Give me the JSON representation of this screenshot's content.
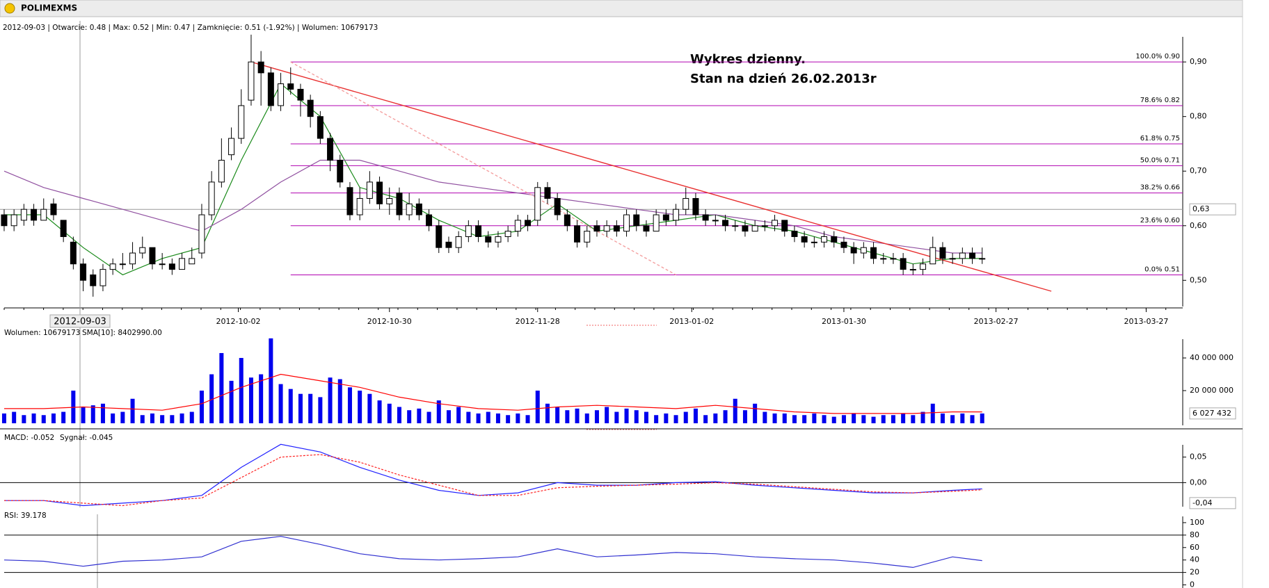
{
  "window_title": "POLIMEXMS",
  "info_line": "2012-09-03 | Otwarcie: 0.48 | Max: 0.52 | Min: 0.47 | Zamknięcie: 0.51 (-1.92%) | Wolumen: 10679173",
  "chart_data": {
    "type": "candlestick",
    "annotation": [
      "Wykres dzienny.",
      "Stan na dzień 26.02.2013r"
    ],
    "xlim": [
      -0.42,
      119.3
    ],
    "xticks": [
      {
        "value": 23.7,
        "label": "2012-10-02"
      },
      {
        "value": 39,
        "label": "2012-10-30"
      },
      {
        "value": 54,
        "label": "2012-11-28"
      },
      {
        "value": 69.6,
        "label": "2013-01-02"
      },
      {
        "value": 85,
        "label": "2013-01-30"
      },
      {
        "value": 100.4,
        "label": "2013-02-27"
      },
      {
        "value": 115.6,
        "label": "2013-03-27"
      }
    ],
    "ylim": [
      0.452,
      0.946
    ],
    "yticks": [
      {
        "value": 0.5,
        "label": "0,50"
      },
      {
        "value": 0.6,
        "label": "0,60"
      },
      {
        "value": 0.7,
        "label": "0,70"
      },
      {
        "value": 0.8,
        "label": "0,80"
      },
      {
        "value": 0.9,
        "label": "0,90"
      }
    ],
    "cursor": {
      "x_label": "2012-09-03",
      "y": {
        "value": 0.63,
        "label": "0,63"
      }
    },
    "candles": [
      [
        0.62,
        0.63,
        0.59,
        0.6
      ],
      [
        0.6,
        0.63,
        0.59,
        0.62
      ],
      [
        0.61,
        0.64,
        0.6,
        0.63
      ],
      [
        0.63,
        0.64,
        0.6,
        0.61
      ],
      [
        0.61,
        0.65,
        0.61,
        0.63
      ],
      [
        0.64,
        0.65,
        0.61,
        0.62
      ],
      [
        0.61,
        0.61,
        0.57,
        0.58
      ],
      [
        0.57,
        0.58,
        0.52,
        0.53
      ],
      [
        0.53,
        0.54,
        0.48,
        0.5
      ],
      [
        0.51,
        0.52,
        0.47,
        0.49
      ],
      [
        0.49,
        0.53,
        0.48,
        0.52
      ],
      [
        0.52,
        0.54,
        0.51,
        0.53
      ],
      [
        0.53,
        0.55,
        0.52,
        0.53
      ],
      [
        0.53,
        0.57,
        0.52,
        0.55
      ],
      [
        0.55,
        0.58,
        0.54,
        0.56
      ],
      [
        0.56,
        0.56,
        0.52,
        0.53
      ],
      [
        0.53,
        0.55,
        0.52,
        0.53
      ],
      [
        0.53,
        0.54,
        0.51,
        0.52
      ],
      [
        0.52,
        0.55,
        0.52,
        0.54
      ],
      [
        0.53,
        0.56,
        0.53,
        0.54
      ],
      [
        0.55,
        0.64,
        0.54,
        0.62
      ],
      [
        0.62,
        0.7,
        0.61,
        0.68
      ],
      [
        0.68,
        0.76,
        0.67,
        0.72
      ],
      [
        0.73,
        0.78,
        0.72,
        0.76
      ],
      [
        0.76,
        0.85,
        0.75,
        0.82
      ],
      [
        0.83,
        0.95,
        0.82,
        0.9
      ],
      [
        0.9,
        0.92,
        0.82,
        0.88
      ],
      [
        0.88,
        0.89,
        0.81,
        0.82
      ],
      [
        0.82,
        0.88,
        0.81,
        0.86
      ],
      [
        0.86,
        0.89,
        0.84,
        0.85
      ],
      [
        0.85,
        0.86,
        0.8,
        0.83
      ],
      [
        0.83,
        0.84,
        0.78,
        0.8
      ],
      [
        0.8,
        0.81,
        0.75,
        0.76
      ],
      [
        0.76,
        0.77,
        0.7,
        0.72
      ],
      [
        0.72,
        0.73,
        0.67,
        0.68
      ],
      [
        0.67,
        0.68,
        0.61,
        0.62
      ],
      [
        0.62,
        0.67,
        0.61,
        0.65
      ],
      [
        0.65,
        0.7,
        0.64,
        0.68
      ],
      [
        0.68,
        0.69,
        0.63,
        0.64
      ],
      [
        0.64,
        0.67,
        0.62,
        0.65
      ],
      [
        0.66,
        0.67,
        0.61,
        0.62
      ],
      [
        0.62,
        0.66,
        0.61,
        0.64
      ],
      [
        0.64,
        0.65,
        0.61,
        0.62
      ],
      [
        0.62,
        0.63,
        0.59,
        0.6
      ],
      [
        0.6,
        0.61,
        0.55,
        0.56
      ],
      [
        0.57,
        0.58,
        0.55,
        0.56
      ],
      [
        0.56,
        0.59,
        0.55,
        0.58
      ],
      [
        0.58,
        0.61,
        0.57,
        0.6
      ],
      [
        0.6,
        0.61,
        0.57,
        0.58
      ],
      [
        0.58,
        0.59,
        0.56,
        0.57
      ],
      [
        0.57,
        0.59,
        0.56,
        0.58
      ],
      [
        0.58,
        0.6,
        0.57,
        0.59
      ],
      [
        0.59,
        0.62,
        0.58,
        0.61
      ],
      [
        0.61,
        0.62,
        0.59,
        0.6
      ],
      [
        0.61,
        0.68,
        0.6,
        0.67
      ],
      [
        0.67,
        0.68,
        0.64,
        0.65
      ],
      [
        0.65,
        0.66,
        0.61,
        0.62
      ],
      [
        0.62,
        0.63,
        0.59,
        0.6
      ],
      [
        0.6,
        0.61,
        0.56,
        0.57
      ],
      [
        0.57,
        0.6,
        0.56,
        0.59
      ],
      [
        0.6,
        0.61,
        0.58,
        0.59
      ],
      [
        0.59,
        0.61,
        0.58,
        0.6
      ],
      [
        0.6,
        0.61,
        0.58,
        0.59
      ],
      [
        0.59,
        0.63,
        0.58,
        0.62
      ],
      [
        0.62,
        0.63,
        0.59,
        0.6
      ],
      [
        0.6,
        0.61,
        0.58,
        0.59
      ],
      [
        0.59,
        0.63,
        0.59,
        0.62
      ],
      [
        0.62,
        0.63,
        0.6,
        0.61
      ],
      [
        0.61,
        0.64,
        0.6,
        0.63
      ],
      [
        0.63,
        0.67,
        0.62,
        0.65
      ],
      [
        0.65,
        0.66,
        0.61,
        0.62
      ],
      [
        0.62,
        0.63,
        0.6,
        0.61
      ],
      [
        0.61,
        0.62,
        0.6,
        0.61
      ],
      [
        0.61,
        0.62,
        0.59,
        0.6
      ],
      [
        0.6,
        0.61,
        0.59,
        0.6
      ],
      [
        0.6,
        0.61,
        0.58,
        0.59
      ],
      [
        0.59,
        0.61,
        0.59,
        0.6
      ],
      [
        0.6,
        0.61,
        0.59,
        0.6
      ],
      [
        0.6,
        0.62,
        0.59,
        0.61
      ],
      [
        0.61,
        0.61,
        0.58,
        0.59
      ],
      [
        0.59,
        0.6,
        0.57,
        0.58
      ],
      [
        0.58,
        0.59,
        0.56,
        0.57
      ],
      [
        0.57,
        0.58,
        0.56,
        0.57
      ],
      [
        0.57,
        0.59,
        0.56,
        0.58
      ],
      [
        0.58,
        0.59,
        0.56,
        0.57
      ],
      [
        0.57,
        0.58,
        0.55,
        0.56
      ],
      [
        0.56,
        0.57,
        0.53,
        0.55
      ],
      [
        0.55,
        0.57,
        0.54,
        0.56
      ],
      [
        0.56,
        0.57,
        0.53,
        0.54
      ],
      [
        0.54,
        0.55,
        0.53,
        0.54
      ],
      [
        0.54,
        0.55,
        0.53,
        0.54
      ],
      [
        0.54,
        0.55,
        0.51,
        0.52
      ],
      [
        0.52,
        0.53,
        0.51,
        0.52
      ],
      [
        0.52,
        0.54,
        0.51,
        0.53
      ],
      [
        0.53,
        0.58,
        0.53,
        0.56
      ],
      [
        0.56,
        0.57,
        0.53,
        0.54
      ],
      [
        0.54,
        0.55,
        0.53,
        0.54
      ],
      [
        0.54,
        0.56,
        0.53,
        0.55
      ],
      [
        0.55,
        0.56,
        0.53,
        0.54
      ],
      [
        0.54,
        0.56,
        0.53,
        0.54
      ]
    ],
    "fib_color": "#b000b0",
    "fib_levels": [
      {
        "value": 0.9,
        "label": "100.0% 0.90"
      },
      {
        "value": 0.82,
        "label": "78.6% 0.82"
      },
      {
        "value": 0.75,
        "label": "61.8% 0.75"
      },
      {
        "value": 0.71,
        "label": "50.0% 0.71"
      },
      {
        "value": 0.66,
        "label": "38.2% 0.66"
      },
      {
        "value": 0.6,
        "label": "23.6% 0.60"
      },
      {
        "value": 0.51,
        "label": "0.0% 0.51"
      }
    ],
    "trendlines": [
      {
        "color": "#e83030",
        "points": [
          [
            25,
            0.9
          ],
          [
            106,
            0.48
          ]
        ]
      },
      {
        "color": "#f4a0a0",
        "dashed": true,
        "points": [
          [
            29,
            0.9
          ],
          [
            68,
            0.51
          ]
        ]
      }
    ],
    "line_x": [
      0,
      4,
      8,
      12,
      16,
      20,
      24,
      28,
      32,
      36,
      40,
      44,
      48,
      52,
      56,
      60,
      64,
      68,
      72,
      76,
      80,
      84,
      88,
      92,
      96,
      99
    ],
    "overlays": [
      {
        "color": "#1a8a1a",
        "values": [
          0.62,
          0.62,
          0.56,
          0.51,
          0.54,
          0.56,
          0.72,
          0.86,
          0.8,
          0.67,
          0.65,
          0.61,
          0.58,
          0.59,
          0.64,
          0.59,
          0.6,
          0.61,
          0.62,
          0.6,
          0.59,
          0.57,
          0.55,
          0.53,
          0.54,
          0.54
        ]
      },
      {
        "color": "#9050a0",
        "values": [
          0.7,
          0.67,
          0.65,
          0.63,
          0.61,
          0.59,
          0.63,
          0.68,
          0.72,
          0.72,
          0.7,
          0.68,
          0.67,
          0.66,
          0.65,
          0.64,
          0.63,
          0.62,
          0.62,
          0.61,
          0.6,
          0.58,
          0.57,
          0.56,
          0.55,
          0.55
        ]
      }
    ],
    "volume": {
      "legend": [
        "Wolumen: 10679173",
        "SMA[10]: 8402990.00"
      ],
      "legend_colors": [
        "#0000ff",
        "#ff0000"
      ],
      "ylim": [
        0,
        51500000
      ],
      "yticks": [
        {
          "value": 20000000,
          "label": "20 000 000"
        },
        {
          "value": 40000000,
          "label": "40 000 000"
        }
      ],
      "current": {
        "value": 6027432,
        "label": "6 027 432"
      },
      "color": "#0000ee",
      "values": [
        6000000,
        7000000,
        5000000,
        6000000,
        5000000,
        6000000,
        7000000,
        20000000,
        10000000,
        11000000,
        12000000,
        6000000,
        7000000,
        15000000,
        5000000,
        6000000,
        5000000,
        5000000,
        6000000,
        7000000,
        20000000,
        30000000,
        43000000,
        26000000,
        40000000,
        28000000,
        30000000,
        52000000,
        24000000,
        21000000,
        18000000,
        18000000,
        16000000,
        28000000,
        27000000,
        22000000,
        20000000,
        18000000,
        14000000,
        12000000,
        10000000,
        8000000,
        9000000,
        7000000,
        14000000,
        8000000,
        10000000,
        7000000,
        6000000,
        7000000,
        6000000,
        5000000,
        6000000,
        5000000,
        20000000,
        12000000,
        10000000,
        8000000,
        9000000,
        6000000,
        8000000,
        10000000,
        7000000,
        9000000,
        8000000,
        7000000,
        5000000,
        6000000,
        5000000,
        7000000,
        9000000,
        5000000,
        6000000,
        8000000,
        15000000,
        8000000,
        12000000,
        7000000,
        6000000,
        6000000,
        5000000,
        5000000,
        6000000,
        5000000,
        4000000,
        5000000,
        6000000,
        5000000,
        4000000,
        5000000,
        5000000,
        6000000,
        5000000,
        7000000,
        12000000,
        6000000,
        5000000,
        6000000,
        5000000,
        6000000
      ],
      "sma": {
        "color": "#ff0000",
        "values": [
          9000000,
          9000000,
          10000000,
          9000000,
          8000000,
          12000000,
          22000000,
          30000000,
          26000000,
          22000000,
          16000000,
          12000000,
          9000000,
          8000000,
          10000000,
          11000000,
          10000000,
          9000000,
          11000000,
          9000000,
          7000000,
          6000000,
          6000000,
          6000000,
          7000000,
          7000000
        ]
      }
    },
    "macd": {
      "legend": [
        "MACD: -0.052",
        "Sygnał: -0.045"
      ],
      "legend_colors": [
        "#0000ff",
        "#ff0000"
      ],
      "ylim": [
        -0.047,
        0.074
      ],
      "yticks": [
        {
          "value": 0,
          "label": "0,00"
        },
        {
          "value": 0.05,
          "label": "0,05"
        }
      ],
      "current": {
        "value": -0.04,
        "label": "-0,04"
      },
      "series": [
        {
          "color": "#2020ff",
          "values": [
            -0.035,
            -0.035,
            -0.045,
            -0.04,
            -0.035,
            -0.025,
            0.03,
            0.075,
            0.06,
            0.03,
            0.005,
            -0.015,
            -0.025,
            -0.02,
            0.0,
            -0.005,
            -0.005,
            0.0,
            0.002,
            -0.005,
            -0.01,
            -0.015,
            -0.02,
            -0.02,
            -0.015,
            -0.012
          ]
        },
        {
          "color": "#ff2020",
          "dashed": true,
          "values": [
            -0.035,
            -0.035,
            -0.04,
            -0.045,
            -0.035,
            -0.03,
            0.01,
            0.05,
            0.055,
            0.04,
            0.015,
            -0.005,
            -0.025,
            -0.025,
            -0.01,
            -0.007,
            -0.005,
            -0.003,
            0.0,
            -0.003,
            -0.008,
            -0.013,
            -0.018,
            -0.02,
            -0.017,
            -0.014
          ]
        }
      ]
    },
    "rsi": {
      "legend": "RSI: 39.178",
      "ylim": [
        -5,
        110
      ],
      "yticks": [
        0,
        20,
        40,
        60,
        80,
        100
      ],
      "levels": [
        20,
        80
      ],
      "color": "#3030d0",
      "values": [
        40,
        38,
        30,
        38,
        40,
        45,
        70,
        78,
        65,
        50,
        42,
        40,
        42,
        45,
        58,
        45,
        48,
        52,
        50,
        45,
        42,
        40,
        35,
        28,
        45,
        39
      ]
    }
  }
}
